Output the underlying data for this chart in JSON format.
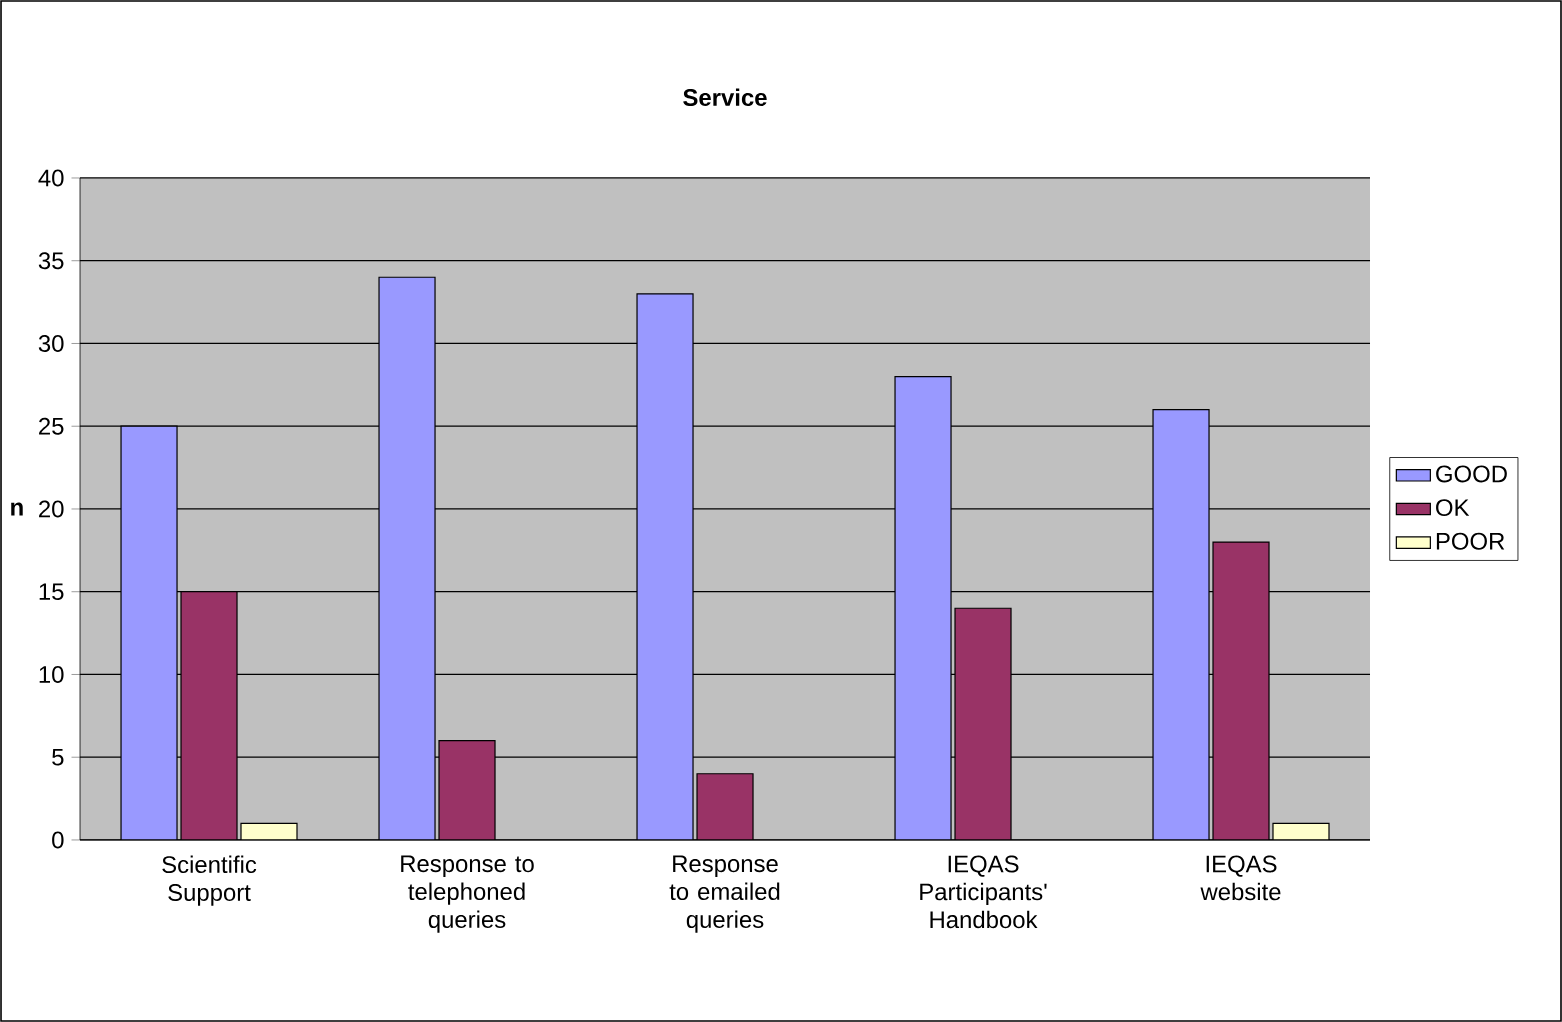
{
  "chart_data": {
    "type": "bar",
    "title": "Service",
    "ylabel": "n",
    "categories": [
      "Scientific Support",
      "Response to telephoned queries",
      "Response to emailed queries",
      "IEQAS Participants' Handbook",
      "IEQAS website"
    ],
    "series": [
      {
        "name": "GOOD",
        "color": "#9999ff",
        "values": [
          25,
          34,
          33,
          28,
          26
        ]
      },
      {
        "name": "OK",
        "color": "#993366",
        "values": [
          15,
          6,
          4,
          14,
          18
        ]
      },
      {
        "name": "POOR",
        "color": "#ffffcc",
        "values": [
          1,
          0,
          0,
          0,
          1
        ]
      }
    ],
    "ylim": [
      0,
      40
    ],
    "yticks": [
      0,
      5,
      10,
      15,
      20,
      25,
      30,
      35,
      40
    ],
    "grid": "y",
    "legend": "right"
  }
}
